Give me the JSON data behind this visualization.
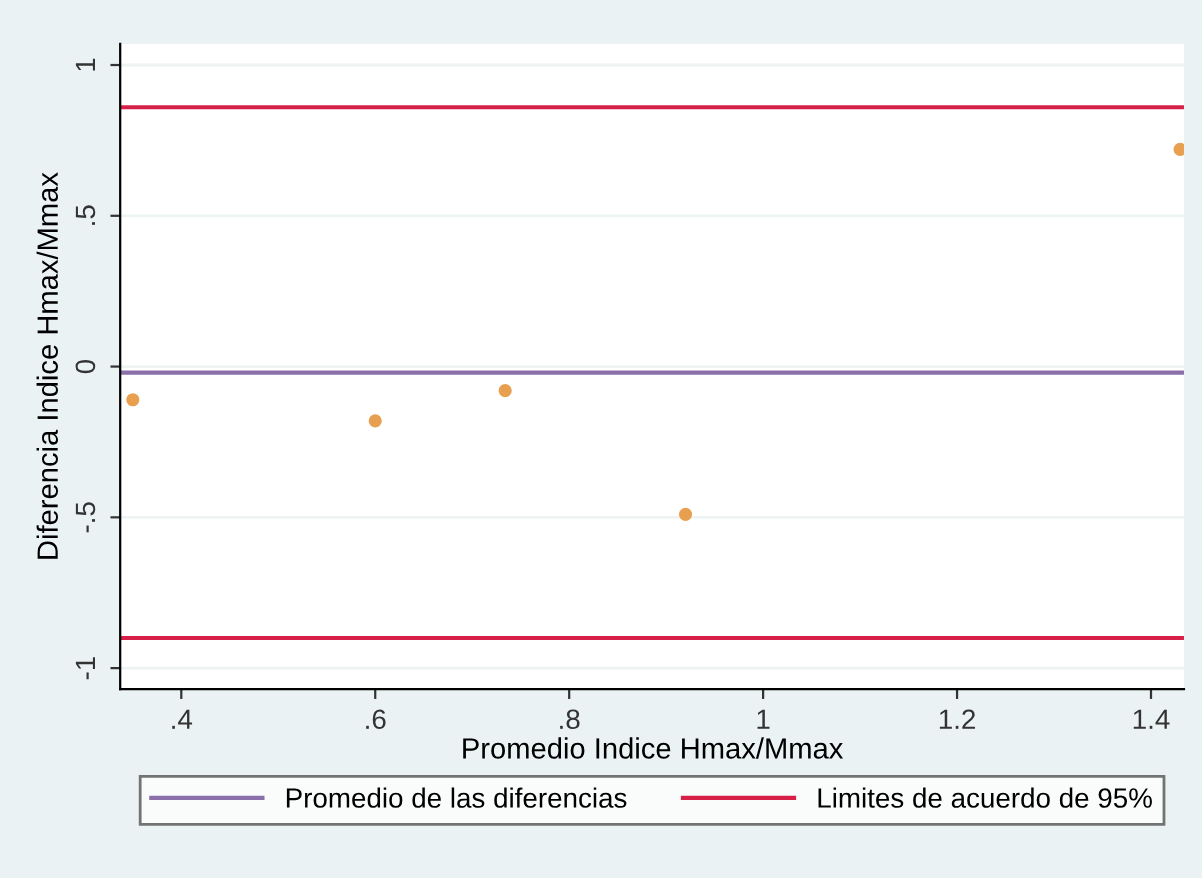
{
  "chart_data": {
    "type": "scatter",
    "xlabel": "Promedio Indice Hmax/Mmax",
    "ylabel": "Diferencia Indice Hmax/Mmax",
    "x": [
      0.35,
      0.6,
      0.734,
      0.92,
      1.43
    ],
    "series": [
      {
        "color": "#e8a050",
        "values": [
          -0.11,
          -0.18,
          -0.08,
          -0.49,
          0.72
        ]
      }
    ],
    "xlim": [
      0.337,
      1.434
    ],
    "ylim": [
      -1.07,
      1.07
    ],
    "xticks": [
      {
        "value": 0.4,
        "label": ".4"
      },
      {
        "value": 0.6,
        "label": ".6"
      },
      {
        "value": 0.8,
        "label": ".8"
      },
      1,
      1.2,
      1.4
    ],
    "yticks": [
      -1,
      {
        "value": -0.5,
        "label": "-.5"
      },
      0,
      {
        "value": 0.5,
        "label": ".5"
      },
      1
    ],
    "ref_lines": [
      {
        "axis": "y",
        "value": -0.02,
        "label": "Promedio de las diferencias",
        "color": "#8a6fa8"
      },
      {
        "axis": "y",
        "value": 0.86,
        "label": "Limites de acuerdo de 95%",
        "color": "#d62048"
      },
      {
        "axis": "y",
        "value": -0.9,
        "color": "#d62048"
      }
    ],
    "grid": "y",
    "legend": "bottom",
    "marker": "circle"
  }
}
